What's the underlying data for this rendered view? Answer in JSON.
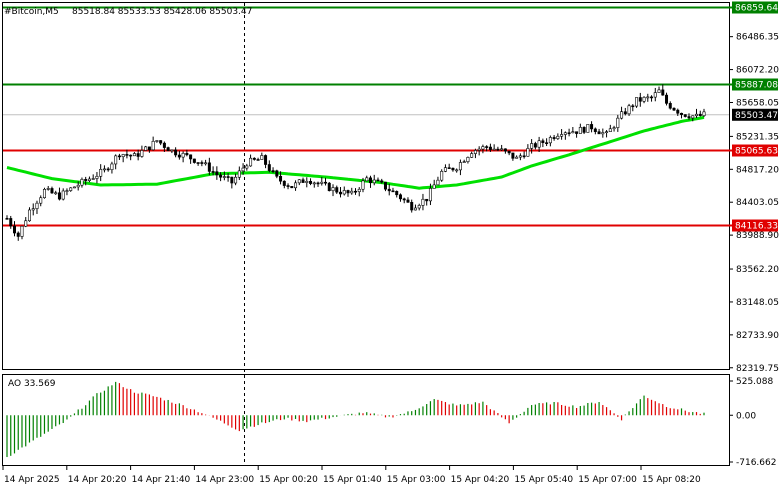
{
  "header": {
    "symbol": "#Bitcoin,M5",
    "ohlc": "85518.84 85533.53 85428.06 85503.47"
  },
  "ao": {
    "title": "AO 33.569",
    "ticks": [
      "525.088",
      "0.00",
      "-716.662"
    ],
    "ylim": [
      -716.662,
      525.088
    ]
  },
  "price_axis": {
    "ticks": [
      "86486.35",
      "86072.20",
      "85658.05",
      "85231.35",
      "84817.20",
      "84403.05",
      "83988.90",
      "83562.20",
      "83148.05",
      "82733.90",
      "82319.75"
    ]
  },
  "time_axis": {
    "labels": [
      "14 Apr 2025",
      "14 Apr 20:20",
      "14 Apr 21:40",
      "14 Apr 23:00",
      "15 Apr 00:20",
      "15 Apr 01:40",
      "15 Apr 03:00",
      "15 Apr 04:20",
      "15 Apr 05:40",
      "15 Apr 07:00",
      "15 Apr 08:20"
    ]
  },
  "levels": [
    {
      "value": 86859.64,
      "label": "86859.64",
      "color": "#008000"
    },
    {
      "value": 85887.08,
      "label": "85887.08",
      "color": "#008000"
    },
    {
      "value": 85065.63,
      "label": "85065.63",
      "color": "#e00000"
    },
    {
      "value": 84116.33,
      "label": "84116.33",
      "color": "#e00000"
    }
  ],
  "current_price": {
    "value": 85503.47,
    "label": "85503.47"
  },
  "chart_data": {
    "type": "candlestick",
    "ylim": [
      82319.75,
      86900
    ],
    "bars": 187,
    "price_anchors": [
      [
        0,
        84200
      ],
      [
        3,
        83980
      ],
      [
        6,
        84300
      ],
      [
        10,
        84550
      ],
      [
        14,
        84480
      ],
      [
        18,
        84600
      ],
      [
        22,
        84700
      ],
      [
        26,
        84800
      ],
      [
        30,
        85020
      ],
      [
        34,
        84980
      ],
      [
        38,
        85100
      ],
      [
        40,
        85180
      ],
      [
        44,
        85050
      ],
      [
        48,
        84980
      ],
      [
        52,
        84900
      ],
      [
        56,
        84750
      ],
      [
        60,
        84650
      ],
      [
        64,
        84900
      ],
      [
        68,
        84950
      ],
      [
        72,
        84700
      ],
      [
        76,
        84600
      ],
      [
        80,
        84700
      ],
      [
        84,
        84620
      ],
      [
        88,
        84550
      ],
      [
        92,
        84500
      ],
      [
        96,
        84700
      ],
      [
        100,
        84620
      ],
      [
        104,
        84500
      ],
      [
        108,
        84350
      ],
      [
        112,
        84450
      ],
      [
        116,
        84780
      ],
      [
        120,
        84850
      ],
      [
        124,
        85050
      ],
      [
        128,
        85100
      ],
      [
        132,
        85050
      ],
      [
        136,
        84950
      ],
      [
        140,
        85100
      ],
      [
        144,
        85180
      ],
      [
        148,
        85300
      ],
      [
        152,
        85300
      ],
      [
        156,
        85350
      ],
      [
        160,
        85250
      ],
      [
        164,
        85500
      ],
      [
        168,
        85680
      ],
      [
        172,
        85720
      ],
      [
        174,
        85800
      ],
      [
        176,
        85650
      ],
      [
        180,
        85520
      ],
      [
        184,
        85480
      ],
      [
        186,
        85503
      ]
    ],
    "ma_anchors": [
      [
        0,
        84840
      ],
      [
        12,
        84700
      ],
      [
        25,
        84620
      ],
      [
        40,
        84630
      ],
      [
        55,
        84760
      ],
      [
        70,
        84780
      ],
      [
        85,
        84720
      ],
      [
        100,
        84650
      ],
      [
        110,
        84580
      ],
      [
        120,
        84620
      ],
      [
        132,
        84720
      ],
      [
        140,
        84860
      ],
      [
        150,
        85000
      ],
      [
        160,
        85150
      ],
      [
        170,
        85300
      ],
      [
        180,
        85420
      ],
      [
        186,
        85470
      ]
    ],
    "ao_anchors": [
      [
        0,
        -640
      ],
      [
        8,
        -360
      ],
      [
        16,
        -80
      ],
      [
        24,
        320
      ],
      [
        29,
        505
      ],
      [
        34,
        360
      ],
      [
        40,
        280
      ],
      [
        46,
        170
      ],
      [
        52,
        40
      ],
      [
        58,
        -120
      ],
      [
        62,
        -230
      ],
      [
        67,
        -140
      ],
      [
        74,
        -50
      ],
      [
        80,
        -90
      ],
      [
        88,
        -20
      ],
      [
        95,
        40
      ],
      [
        102,
        -30
      ],
      [
        108,
        60
      ],
      [
        114,
        240
      ],
      [
        120,
        150
      ],
      [
        127,
        200
      ],
      [
        134,
        -120
      ],
      [
        140,
        160
      ],
      [
        146,
        190
      ],
      [
        152,
        130
      ],
      [
        158,
        210
      ],
      [
        164,
        -60
      ],
      [
        170,
        300
      ],
      [
        176,
        140
      ],
      [
        182,
        60
      ],
      [
        186,
        20
      ]
    ]
  }
}
